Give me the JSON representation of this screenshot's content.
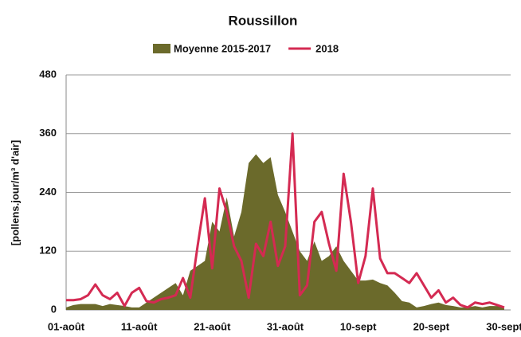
{
  "chart_data": {
    "type": "area-line",
    "title": "Roussillon",
    "y_label": "[pollens.jour/m³ d'air]",
    "categories": [
      "01-août",
      null,
      null,
      null,
      null,
      null,
      null,
      null,
      null,
      null,
      "11-août",
      null,
      null,
      null,
      null,
      null,
      null,
      null,
      null,
      null,
      "21-août",
      null,
      null,
      null,
      null,
      null,
      null,
      null,
      null,
      null,
      "31-août",
      null,
      null,
      null,
      null,
      null,
      null,
      null,
      null,
      null,
      "10-sept",
      null,
      null,
      null,
      null,
      null,
      null,
      null,
      null,
      null,
      "20-sept",
      null,
      null,
      null,
      null,
      null,
      null,
      null,
      null,
      null,
      "30-sept"
    ],
    "series": [
      {
        "name": "Moyenne 2015-2017",
        "kind": "area",
        "color": "#6b6a2b",
        "values": [
          5,
          10,
          12,
          12,
          12,
          8,
          12,
          10,
          8,
          5,
          5,
          15,
          25,
          35,
          45,
          55,
          30,
          80,
          90,
          100,
          180,
          160,
          230,
          150,
          200,
          300,
          318,
          300,
          312,
          235,
          200,
          160,
          120,
          100,
          140,
          100,
          110,
          130,
          100,
          80,
          60,
          60,
          62,
          55,
          50,
          35,
          18,
          15,
          5,
          8,
          12,
          15,
          10,
          8,
          5,
          5,
          8,
          5,
          8,
          8,
          3
        ]
      },
      {
        "name": "2018",
        "kind": "line",
        "color": "#d42a52",
        "values": [
          20,
          20,
          22,
          30,
          52,
          30,
          22,
          35,
          8,
          35,
          45,
          18,
          15,
          22,
          25,
          30,
          65,
          25,
          130,
          228,
          85,
          248,
          200,
          130,
          100,
          25,
          135,
          110,
          180,
          90,
          130,
          360,
          30,
          50,
          180,
          200,
          135,
          80,
          278,
          180,
          55,
          110,
          248,
          105,
          75,
          75,
          65,
          55,
          75,
          50,
          25,
          40,
          15,
          25,
          10,
          5,
          15,
          12,
          15,
          10,
          5
        ]
      }
    ],
    "ylim": [
      0,
      480
    ],
    "yticks": [
      0,
      120,
      240,
      360,
      480
    ],
    "grid": true
  }
}
